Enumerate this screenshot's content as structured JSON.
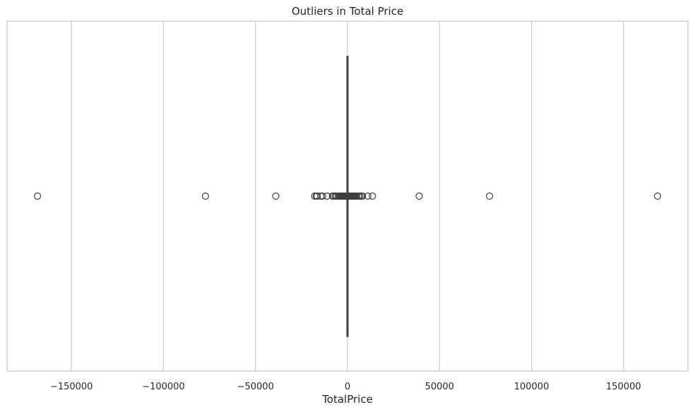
{
  "chart_data": {
    "type": "box",
    "orientation": "horizontal",
    "title": "Outliers in Total Price",
    "xlabel": "TotalPrice",
    "ylabel": "",
    "xlim": [
      -185000,
      185000
    ],
    "xticks": [
      -150000,
      -100000,
      -50000,
      0,
      50000,
      100000,
      150000
    ],
    "xtick_labels": [
      "−150000",
      "−100000",
      "−50000",
      "0",
      "50000",
      "100000",
      "150000"
    ],
    "grid": true,
    "box": {
      "whisker_low": -200,
      "q1": 0,
      "median": 0,
      "q3": 0,
      "whisker_high": 200
    },
    "outliers": [
      -168469,
      -77183,
      -38970,
      -17836,
      -16888,
      -16453,
      -14542,
      -13541,
      -11062,
      -8143,
      -7427,
      -6539,
      -5943,
      -4921,
      -4287,
      -3949,
      -3541,
      -3155,
      -2725,
      -2382,
      -2033,
      -1715,
      -1468,
      -1188,
      -927,
      -710,
      -520,
      -380,
      380,
      520,
      710,
      927,
      1188,
      1468,
      1715,
      2033,
      2382,
      2725,
      3155,
      3541,
      3949,
      4287,
      4921,
      5943,
      6539,
      7427,
      8143,
      11062,
      13541,
      38970,
      77183,
      168469
    ],
    "colors": {
      "grid": "#cccccc",
      "frame": "#cccccc",
      "box_line": "#3f3f3f",
      "outlier_edge": "#3f3f3f"
    }
  }
}
